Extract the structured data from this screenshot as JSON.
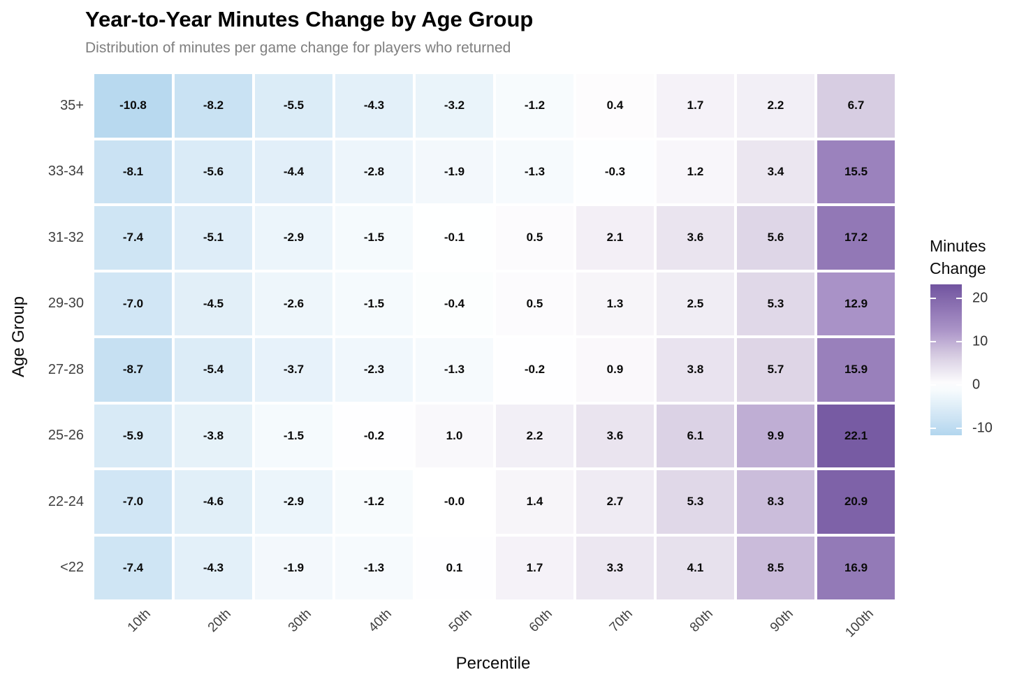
{
  "header": {
    "title": "Year-to-Year Minutes Change by Age Group",
    "subtitle": "Distribution of minutes per game change for players who returned"
  },
  "chart_data": {
    "type": "heatmap",
    "title": "Year-to-Year Minutes Change by Age Group",
    "subtitle": "Distribution of minutes per game change for players who returned",
    "xlabel": "Percentile",
    "ylabel": "Age Group",
    "x_categories": [
      "10th",
      "20th",
      "30th",
      "40th",
      "50th",
      "60th",
      "70th",
      "80th",
      "90th",
      "100th"
    ],
    "y_categories": [
      "35+",
      "33-34",
      "31-32",
      "29-30",
      "27-28",
      "25-26",
      "22-24",
      "<22"
    ],
    "values": [
      [
        -10.8,
        -8.2,
        -5.5,
        -4.3,
        -3.2,
        -1.2,
        0.4,
        1.7,
        2.2,
        6.7
      ],
      [
        -8.1,
        -5.6,
        -4.4,
        -2.8,
        -1.9,
        -1.3,
        -0.3,
        1.2,
        3.4,
        15.5
      ],
      [
        -7.4,
        -5.1,
        -2.9,
        -1.5,
        -0.1,
        0.5,
        2.1,
        3.6,
        5.6,
        17.2
      ],
      [
        -7.0,
        -4.5,
        -2.6,
        -1.5,
        -0.4,
        0.5,
        1.3,
        2.5,
        5.3,
        12.9
      ],
      [
        -8.7,
        -5.4,
        -3.7,
        -2.3,
        -1.3,
        -0.2,
        0.9,
        3.8,
        5.7,
        15.9
      ],
      [
        -5.9,
        -3.8,
        -1.5,
        -0.2,
        1.0,
        2.2,
        3.6,
        6.1,
        9.9,
        22.1
      ],
      [
        -7.0,
        -4.6,
        -2.9,
        -1.2,
        0.0,
        1.4,
        2.7,
        5.3,
        8.3,
        20.9
      ],
      [
        -7.4,
        -4.3,
        -1.9,
        -1.3,
        0.1,
        1.7,
        3.3,
        4.1,
        8.5,
        16.9
      ]
    ],
    "cell_labels": [
      [
        "-10.8",
        "-8.2",
        "-5.5",
        "-4.3",
        "-3.2",
        "-1.2",
        "0.4",
        "1.7",
        "2.2",
        "6.7"
      ],
      [
        "-8.1",
        "-5.6",
        "-4.4",
        "-2.8",
        "-1.9",
        "-1.3",
        "-0.3",
        "1.2",
        "3.4",
        "15.5"
      ],
      [
        "-7.4",
        "-5.1",
        "-2.9",
        "-1.5",
        "-0.1",
        "0.5",
        "2.1",
        "3.6",
        "5.6",
        "17.2"
      ],
      [
        "-7.0",
        "-4.5",
        "-2.6",
        "-1.5",
        "-0.4",
        "0.5",
        "1.3",
        "2.5",
        "5.3",
        "12.9"
      ],
      [
        "-8.7",
        "-5.4",
        "-3.7",
        "-2.3",
        "-1.3",
        "-0.2",
        "0.9",
        "3.8",
        "5.7",
        "15.9"
      ],
      [
        "-5.9",
        "-3.8",
        "-1.5",
        "-0.2",
        "1.0",
        "2.2",
        "3.6",
        "6.1",
        "9.9",
        "22.1"
      ],
      [
        "-7.0",
        "-4.6",
        "-2.9",
        "-1.2",
        "-0.0",
        "1.4",
        "2.7",
        "5.3",
        "8.3",
        "20.9"
      ],
      [
        "-7.4",
        "-4.3",
        "-1.9",
        "-1.3",
        "0.1",
        "1.7",
        "3.3",
        "4.1",
        "8.5",
        "16.9"
      ]
    ],
    "legend": {
      "title": "Minutes\nChange",
      "ticks": [
        {
          "value": 20,
          "label": "20"
        },
        {
          "value": 10,
          "label": "10"
        },
        {
          "value": 0,
          "label": "0"
        },
        {
          "value": -10,
          "label": "-10"
        }
      ]
    },
    "color_scale": {
      "type": "diverging",
      "domain": [
        -11.6,
        0,
        23.2
      ],
      "low": "#b3d6ee",
      "mid": "#ffffff",
      "high": "#71549f",
      "positive_stops": [
        [
          0,
          "#ffffff"
        ],
        [
          0.28,
          "#d9cfe3"
        ],
        [
          0.54,
          "#ab94c8"
        ],
        [
          1,
          "#71549f"
        ]
      ]
    },
    "grid": "off",
    "legend_position": "right"
  }
}
